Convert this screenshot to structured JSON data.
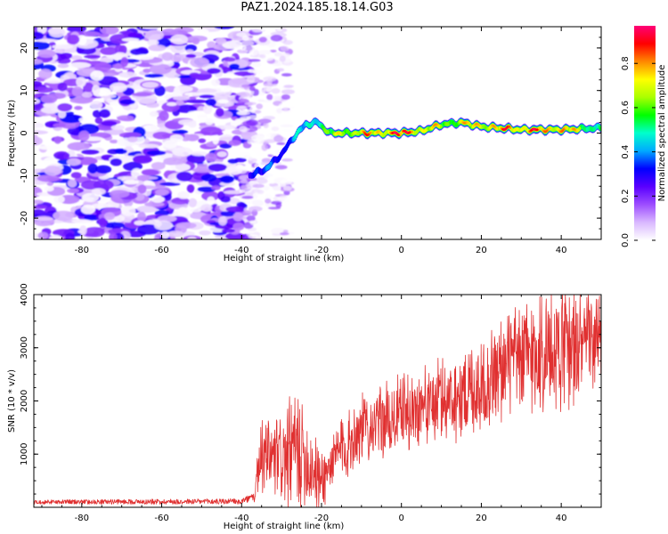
{
  "title": "PAZ1.2024.185.18.14.G03",
  "chart_data": [
    {
      "type": "heatmap",
      "xlabel": "Height of straight line (km)",
      "ylabel": "Frequency (Hz)",
      "xlim": [
        -92,
        50
      ],
      "ylim": [
        -25,
        25
      ],
      "xticks": [
        -80,
        -60,
        -40,
        -20,
        0,
        20,
        40
      ],
      "yticks": [
        -20,
        -10,
        0,
        10,
        20
      ],
      "grid": false,
      "colorbar": {
        "label": "Normalized spectral amplitude",
        "range": [
          0,
          0.97
        ],
        "ticks": [
          0.0,
          0.2,
          0.4,
          0.6,
          0.8
        ],
        "colormap": [
          "#ffffff",
          "#d9b8ff",
          "#9d4dff",
          "#5a00ff",
          "#0000ff",
          "#00aaff",
          "#00ffcc",
          "#00ff00",
          "#aaff00",
          "#ffff00",
          "#ff8800",
          "#ff0000",
          "#ff0077"
        ]
      },
      "noise_region": {
        "x": [
          -92,
          -38
        ],
        "amplitude": 0.15
      },
      "signal_track": {
        "points": [
          {
            "x": -38,
            "f": -10
          },
          {
            "x": -34,
            "f": -8.5
          },
          {
            "x": -30,
            "f": -5
          },
          {
            "x": -27,
            "f": -1
          },
          {
            "x": -24,
            "f": 2
          },
          {
            "x": -21,
            "f": 2.5
          },
          {
            "x": -18,
            "f": 0
          },
          {
            "x": -10,
            "f": 0
          },
          {
            "x": 0,
            "f": 0
          },
          {
            "x": 5,
            "f": 0.5
          },
          {
            "x": 10,
            "f": 2
          },
          {
            "x": 15,
            "f": 2.5
          },
          {
            "x": 20,
            "f": 1.5
          },
          {
            "x": 30,
            "f": 0.8
          },
          {
            "x": 40,
            "f": 0.8
          },
          {
            "x": 50,
            "f": 1.2
          }
        ],
        "amplitude": [
          {
            "x": -38,
            "a": 0.35
          },
          {
            "x": -28,
            "a": 0.4
          },
          {
            "x": -22,
            "a": 0.55
          },
          {
            "x": -14,
            "a": 0.75
          },
          {
            "x": -5,
            "a": 0.85
          },
          {
            "x": 0,
            "a": 0.95
          },
          {
            "x": 10,
            "a": 0.7
          },
          {
            "x": 20,
            "a": 0.8
          },
          {
            "x": 30,
            "a": 0.9
          },
          {
            "x": 40,
            "a": 0.85
          },
          {
            "x": 50,
            "a": 0.55
          }
        ]
      }
    },
    {
      "type": "line",
      "xlabel": "Height of straight line (km)",
      "ylabel": "SNR (10 * v/v)",
      "xlim": [
        -92,
        50
      ],
      "ylim": [
        0,
        4000
      ],
      "xticks": [
        -80,
        -60,
        -40,
        -20,
        0,
        20,
        40
      ],
      "yticks": [
        1000,
        2000,
        3000,
        4000
      ],
      "grid": false,
      "line_color": "#e03030",
      "trend": [
        {
          "x": -92,
          "mean": 100,
          "spread": 80
        },
        {
          "x": -40,
          "mean": 110,
          "spread": 110
        },
        {
          "x": -37,
          "mean": 200,
          "spread": 150
        },
        {
          "x": -35,
          "mean": 900,
          "spread": 800
        },
        {
          "x": -30,
          "mean": 900,
          "spread": 900
        },
        {
          "x": -26,
          "mean": 1100,
          "spread": 1300
        },
        {
          "x": -20,
          "mean": 500,
          "spread": 600
        },
        {
          "x": -15,
          "mean": 1100,
          "spread": 700
        },
        {
          "x": -10,
          "mean": 1500,
          "spread": 700
        },
        {
          "x": 0,
          "mean": 1750,
          "spread": 800
        },
        {
          "x": 10,
          "mean": 2000,
          "spread": 900
        },
        {
          "x": 20,
          "mean": 2300,
          "spread": 1000
        },
        {
          "x": 30,
          "mean": 2800,
          "spread": 1200
        },
        {
          "x": 40,
          "mean": 3000,
          "spread": 1300
        },
        {
          "x": 50,
          "mean": 3100,
          "spread": 900
        }
      ]
    }
  ]
}
